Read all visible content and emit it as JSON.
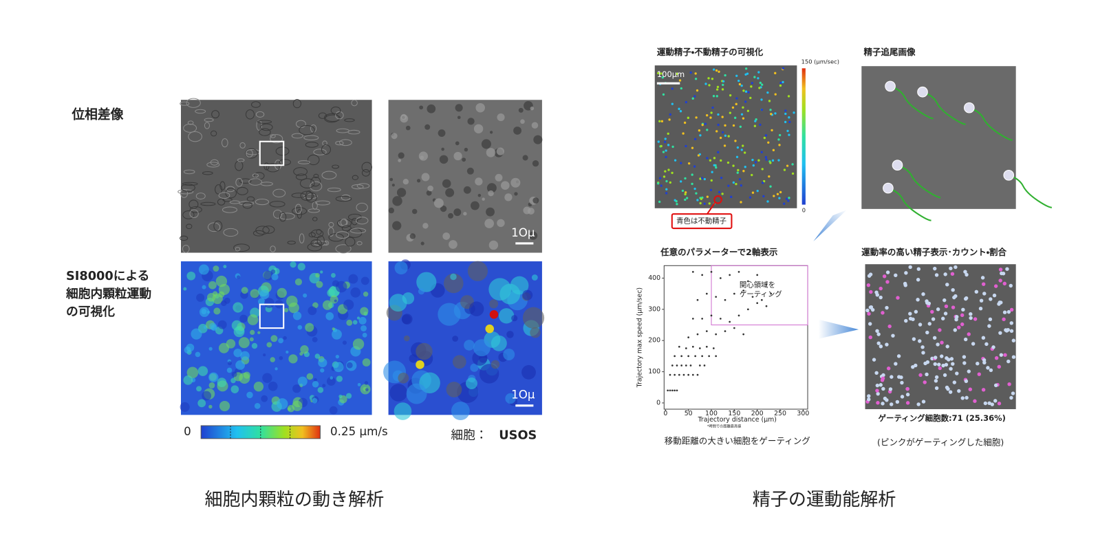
{
  "left": {
    "row1_label": "位相差像",
    "row2_label": [
      "SI8000による",
      "細胞内顆粒運動",
      "の可視化"
    ],
    "scale_bar_labels": [
      "1Oμ",
      "1Oμ"
    ],
    "colorbar": {
      "min_label": "0",
      "max_label": "0.25 μm/s"
    },
    "cell_label": "細胞：",
    "cell_name": "USOS",
    "caption": "細胞内顆粒の動き解析"
  },
  "right": {
    "panels": [
      {
        "title": "運動精子・不動精子の可視化",
        "scale_bar": "100μm",
        "colorbar_max": "150 (μm/sec)",
        "colorbar_min": "0",
        "callout": "青色は不動精子"
      },
      {
        "title": "精子追尾画像"
      },
      {
        "title": "任意のパラメーターで2軸表示"
      },
      {
        "title": "運動率の高い精子表示･カウント・割合",
        "count": "ゲーティング細胞数:71 (25.36%)",
        "note": "(ピンクがゲーティングした細胞)"
      }
    ],
    "scatter": {
      "x_label": "Trajectory distance (μm)",
      "y_label": "Trajectory max speed (μm/sec)",
      "footnote": "*時間での距離最高値",
      "gate_label": [
        "関心領域を",
        "ゲーティング"
      ],
      "caption": "移動距離の大きい細胞をゲーティング",
      "xlim": [
        -3,
        310
      ],
      "ylim": [
        -20,
        440
      ],
      "xticks": [
        0,
        50,
        100,
        150,
        200,
        250,
        300
      ],
      "yticks": [
        0,
        100,
        200,
        300,
        400
      ],
      "x": [
        5,
        10,
        15,
        20,
        25,
        10,
        20,
        30,
        40,
        50,
        60,
        70,
        15,
        25,
        35,
        45,
        55,
        75,
        85,
        20,
        35,
        50,
        65,
        80,
        95,
        110,
        30,
        45,
        60,
        75,
        90,
        105,
        50,
        70,
        90,
        110,
        130,
        150,
        170,
        60,
        80,
        100,
        120,
        140,
        160,
        180,
        200,
        220,
        70,
        90,
        110,
        130,
        150,
        170,
        190,
        210,
        230,
        60,
        80,
        100,
        120,
        140,
        160,
        180,
        200,
        220
      ],
      "y": [
        40,
        40,
        40,
        40,
        40,
        90,
        90,
        90,
        90,
        90,
        90,
        90,
        120,
        120,
        120,
        120,
        120,
        120,
        120,
        150,
        150,
        150,
        150,
        150,
        150,
        150,
        180,
        175,
        180,
        175,
        180,
        175,
        210,
        220,
        230,
        220,
        230,
        240,
        220,
        270,
        270,
        280,
        270,
        260,
        280,
        300,
        320,
        310,
        330,
        350,
        340,
        330,
        350,
        360,
        340,
        330,
        350,
        420,
        410,
        420,
        400,
        410,
        420,
        390,
        410,
        380
      ],
      "point_color": "#333333",
      "gate_x": [
        100,
        310
      ],
      "gate_y": [
        250,
        440
      ],
      "gate_color": "#d070d0"
    },
    "caption": "精子の運動能解析"
  }
}
